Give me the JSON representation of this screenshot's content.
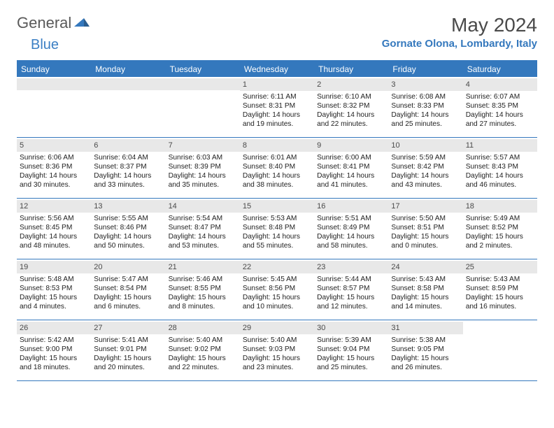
{
  "logo": {
    "text1": "General",
    "text2": "Blue"
  },
  "title": "May 2024",
  "location": "Gornate Olona, Lombardy, Italy",
  "colors": {
    "header_bar": "#3478bd",
    "day_bar": "#e8e8e8",
    "text": "#222222",
    "logo_gray": "#5a5a5a"
  },
  "daysOfWeek": [
    "Sunday",
    "Monday",
    "Tuesday",
    "Wednesday",
    "Thursday",
    "Friday",
    "Saturday"
  ],
  "weeks": [
    [
      {
        "empty": true
      },
      {
        "empty": true
      },
      {
        "empty": true
      },
      {
        "num": "1",
        "sunrise": "Sunrise: 6:11 AM",
        "sunset": "Sunset: 8:31 PM",
        "day1": "Daylight: 14 hours",
        "day2": "and 19 minutes."
      },
      {
        "num": "2",
        "sunrise": "Sunrise: 6:10 AM",
        "sunset": "Sunset: 8:32 PM",
        "day1": "Daylight: 14 hours",
        "day2": "and 22 minutes."
      },
      {
        "num": "3",
        "sunrise": "Sunrise: 6:08 AM",
        "sunset": "Sunset: 8:33 PM",
        "day1": "Daylight: 14 hours",
        "day2": "and 25 minutes."
      },
      {
        "num": "4",
        "sunrise": "Sunrise: 6:07 AM",
        "sunset": "Sunset: 8:35 PM",
        "day1": "Daylight: 14 hours",
        "day2": "and 27 minutes."
      }
    ],
    [
      {
        "num": "5",
        "sunrise": "Sunrise: 6:06 AM",
        "sunset": "Sunset: 8:36 PM",
        "day1": "Daylight: 14 hours",
        "day2": "and 30 minutes."
      },
      {
        "num": "6",
        "sunrise": "Sunrise: 6:04 AM",
        "sunset": "Sunset: 8:37 PM",
        "day1": "Daylight: 14 hours",
        "day2": "and 33 minutes."
      },
      {
        "num": "7",
        "sunrise": "Sunrise: 6:03 AM",
        "sunset": "Sunset: 8:39 PM",
        "day1": "Daylight: 14 hours",
        "day2": "and 35 minutes."
      },
      {
        "num": "8",
        "sunrise": "Sunrise: 6:01 AM",
        "sunset": "Sunset: 8:40 PM",
        "day1": "Daylight: 14 hours",
        "day2": "and 38 minutes."
      },
      {
        "num": "9",
        "sunrise": "Sunrise: 6:00 AM",
        "sunset": "Sunset: 8:41 PM",
        "day1": "Daylight: 14 hours",
        "day2": "and 41 minutes."
      },
      {
        "num": "10",
        "sunrise": "Sunrise: 5:59 AM",
        "sunset": "Sunset: 8:42 PM",
        "day1": "Daylight: 14 hours",
        "day2": "and 43 minutes."
      },
      {
        "num": "11",
        "sunrise": "Sunrise: 5:57 AM",
        "sunset": "Sunset: 8:43 PM",
        "day1": "Daylight: 14 hours",
        "day2": "and 46 minutes."
      }
    ],
    [
      {
        "num": "12",
        "sunrise": "Sunrise: 5:56 AM",
        "sunset": "Sunset: 8:45 PM",
        "day1": "Daylight: 14 hours",
        "day2": "and 48 minutes."
      },
      {
        "num": "13",
        "sunrise": "Sunrise: 5:55 AM",
        "sunset": "Sunset: 8:46 PM",
        "day1": "Daylight: 14 hours",
        "day2": "and 50 minutes."
      },
      {
        "num": "14",
        "sunrise": "Sunrise: 5:54 AM",
        "sunset": "Sunset: 8:47 PM",
        "day1": "Daylight: 14 hours",
        "day2": "and 53 minutes."
      },
      {
        "num": "15",
        "sunrise": "Sunrise: 5:53 AM",
        "sunset": "Sunset: 8:48 PM",
        "day1": "Daylight: 14 hours",
        "day2": "and 55 minutes."
      },
      {
        "num": "16",
        "sunrise": "Sunrise: 5:51 AM",
        "sunset": "Sunset: 8:49 PM",
        "day1": "Daylight: 14 hours",
        "day2": "and 58 minutes."
      },
      {
        "num": "17",
        "sunrise": "Sunrise: 5:50 AM",
        "sunset": "Sunset: 8:51 PM",
        "day1": "Daylight: 15 hours",
        "day2": "and 0 minutes."
      },
      {
        "num": "18",
        "sunrise": "Sunrise: 5:49 AM",
        "sunset": "Sunset: 8:52 PM",
        "day1": "Daylight: 15 hours",
        "day2": "and 2 minutes."
      }
    ],
    [
      {
        "num": "19",
        "sunrise": "Sunrise: 5:48 AM",
        "sunset": "Sunset: 8:53 PM",
        "day1": "Daylight: 15 hours",
        "day2": "and 4 minutes."
      },
      {
        "num": "20",
        "sunrise": "Sunrise: 5:47 AM",
        "sunset": "Sunset: 8:54 PM",
        "day1": "Daylight: 15 hours",
        "day2": "and 6 minutes."
      },
      {
        "num": "21",
        "sunrise": "Sunrise: 5:46 AM",
        "sunset": "Sunset: 8:55 PM",
        "day1": "Daylight: 15 hours",
        "day2": "and 8 minutes."
      },
      {
        "num": "22",
        "sunrise": "Sunrise: 5:45 AM",
        "sunset": "Sunset: 8:56 PM",
        "day1": "Daylight: 15 hours",
        "day2": "and 10 minutes."
      },
      {
        "num": "23",
        "sunrise": "Sunrise: 5:44 AM",
        "sunset": "Sunset: 8:57 PM",
        "day1": "Daylight: 15 hours",
        "day2": "and 12 minutes."
      },
      {
        "num": "24",
        "sunrise": "Sunrise: 5:43 AM",
        "sunset": "Sunset: 8:58 PM",
        "day1": "Daylight: 15 hours",
        "day2": "and 14 minutes."
      },
      {
        "num": "25",
        "sunrise": "Sunrise: 5:43 AM",
        "sunset": "Sunset: 8:59 PM",
        "day1": "Daylight: 15 hours",
        "day2": "and 16 minutes."
      }
    ],
    [
      {
        "num": "26",
        "sunrise": "Sunrise: 5:42 AM",
        "sunset": "Sunset: 9:00 PM",
        "day1": "Daylight: 15 hours",
        "day2": "and 18 minutes."
      },
      {
        "num": "27",
        "sunrise": "Sunrise: 5:41 AM",
        "sunset": "Sunset: 9:01 PM",
        "day1": "Daylight: 15 hours",
        "day2": "and 20 minutes."
      },
      {
        "num": "28",
        "sunrise": "Sunrise: 5:40 AM",
        "sunset": "Sunset: 9:02 PM",
        "day1": "Daylight: 15 hours",
        "day2": "and 22 minutes."
      },
      {
        "num": "29",
        "sunrise": "Sunrise: 5:40 AM",
        "sunset": "Sunset: 9:03 PM",
        "day1": "Daylight: 15 hours",
        "day2": "and 23 minutes."
      },
      {
        "num": "30",
        "sunrise": "Sunrise: 5:39 AM",
        "sunset": "Sunset: 9:04 PM",
        "day1": "Daylight: 15 hours",
        "day2": "and 25 minutes."
      },
      {
        "num": "31",
        "sunrise": "Sunrise: 5:38 AM",
        "sunset": "Sunset: 9:05 PM",
        "day1": "Daylight: 15 hours",
        "day2": "and 26 minutes."
      },
      {
        "empty": true,
        "noBar": true
      }
    ]
  ]
}
